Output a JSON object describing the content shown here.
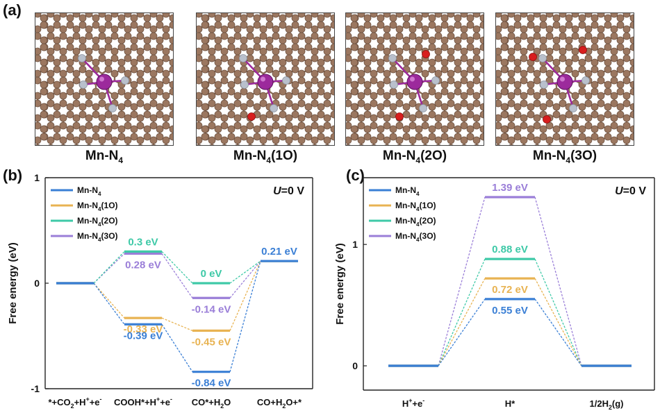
{
  "panels": {
    "a": "(a)",
    "b": "(b)",
    "c": "(c)"
  },
  "structures": [
    {
      "base": "Mn-N",
      "sub": "4",
      "suffix": ""
    },
    {
      "base": "Mn-N",
      "sub": "4",
      "suffix": "(1O)"
    },
    {
      "base": "Mn-N",
      "sub": "4",
      "suffix": "(2O)"
    },
    {
      "base": "Mn-N",
      "sub": "4",
      "suffix": "(3O)"
    }
  ],
  "colors": {
    "carbon": "#9b7760",
    "nitrogen": "#b9c0cc",
    "manganese": "#9c2a9c",
    "oxygen": "#d81e1e",
    "mn": "#3a7fd5",
    "o1": "#e8b352",
    "o2": "#3ec9a7",
    "o3": "#9a7ed8"
  },
  "chart_data": [
    {
      "type": "line",
      "title": "U=0 V",
      "ylabel": "Free energy (eV)",
      "ylim": [
        -1,
        1
      ],
      "yticks": [
        "-1",
        "0",
        "1"
      ],
      "categories": [
        {
          "main": "*+CO",
          "sub": "2",
          "rest": "+H",
          "sup": "+",
          "rest2": "+e",
          "sup2": "-"
        },
        {
          "main": "COOH*+H",
          "sub": "",
          "rest": "",
          "sup": "+",
          "rest2": "+e",
          "sup2": "-"
        },
        {
          "main": "CO*+H",
          "sub": "2",
          "rest": "O",
          "sup": "",
          "rest2": "",
          "sup2": ""
        },
        {
          "main": "CO+H",
          "sub": "2",
          "rest": "O+*",
          "sup": "",
          "rest2": "",
          "sup2": ""
        }
      ],
      "series": [
        {
          "name": "Mn-N",
          "sub": "4",
          "suffix": "",
          "color": "#3a7fd5",
          "values": [
            0,
            -0.39,
            -0.84,
            0.21
          ]
        },
        {
          "name": "Mn-N",
          "sub": "4",
          "suffix": "(1O)",
          "color": "#e8b352",
          "values": [
            0,
            -0.33,
            -0.45,
            0.21
          ]
        },
        {
          "name": "Mn-N",
          "sub": "4",
          "suffix": "(2O)",
          "color": "#3ec9a7",
          "values": [
            0,
            0.3,
            0,
            0.21
          ]
        },
        {
          "name": "Mn-N",
          "sub": "4",
          "suffix": "(3O)",
          "color": "#9a7ed8",
          "values": [
            0,
            0.28,
            -0.14,
            0.21
          ]
        }
      ],
      "labels": [
        {
          "text": "0.3 eV",
          "series": 2,
          "index": 1,
          "pos": "above"
        },
        {
          "text": "0.28 eV",
          "series": 3,
          "index": 1,
          "pos": "below"
        },
        {
          "text": "-0.33 eV",
          "series": 1,
          "index": 1,
          "pos": "below"
        },
        {
          "text": "-0.39 eV",
          "series": 0,
          "index": 1,
          "pos": "below"
        },
        {
          "text": "0 eV",
          "series": 2,
          "index": 2,
          "pos": "above"
        },
        {
          "text": "-0.14 eV",
          "series": 3,
          "index": 2,
          "pos": "below"
        },
        {
          "text": "-0.45 eV",
          "series": 1,
          "index": 2,
          "pos": "below"
        },
        {
          "text": "-0.84 eV",
          "series": 0,
          "index": 2,
          "pos": "below"
        },
        {
          "text": "0.21 eV",
          "series": 0,
          "index": 3,
          "pos": "above"
        }
      ]
    },
    {
      "type": "line",
      "title": "U=0 V",
      "ylabel": "Free energy (eV)",
      "ylim": [
        -0.2,
        1.55
      ],
      "yticks": [
        "0",
        "1"
      ],
      "categories": [
        {
          "main": "H",
          "sub": "",
          "rest": "",
          "sup": "+",
          "rest2": "+e",
          "sup2": "-"
        },
        {
          "main": "H*",
          "sub": "",
          "rest": "",
          "sup": "",
          "rest2": "",
          "sup2": ""
        },
        {
          "main": "1/2H",
          "sub": "2",
          "rest": "(g)",
          "sup": "",
          "rest2": "",
          "sup2": ""
        }
      ],
      "series": [
        {
          "name": "Mn-N",
          "sub": "4",
          "suffix": "",
          "color": "#3a7fd5",
          "values": [
            0,
            0.55,
            0
          ]
        },
        {
          "name": "Mn-N",
          "sub": "4",
          "suffix": "(1O)",
          "color": "#e8b352",
          "values": [
            0,
            0.72,
            0
          ]
        },
        {
          "name": "Mn-N",
          "sub": "4",
          "suffix": "(2O)",
          "color": "#3ec9a7",
          "values": [
            0,
            0.88,
            0
          ]
        },
        {
          "name": "Mn-N",
          "sub": "4",
          "suffix": "(3O)",
          "color": "#9a7ed8",
          "values": [
            0,
            1.39,
            0
          ]
        }
      ],
      "labels": [
        {
          "text": "1.39 eV",
          "series": 3,
          "index": 1,
          "pos": "above"
        },
        {
          "text": "0.88 eV",
          "series": 2,
          "index": 1,
          "pos": "above"
        },
        {
          "text": "0.72 eV",
          "series": 1,
          "index": 1,
          "pos": "below"
        },
        {
          "text": "0.55 eV",
          "series": 0,
          "index": 1,
          "pos": "below"
        }
      ]
    }
  ]
}
